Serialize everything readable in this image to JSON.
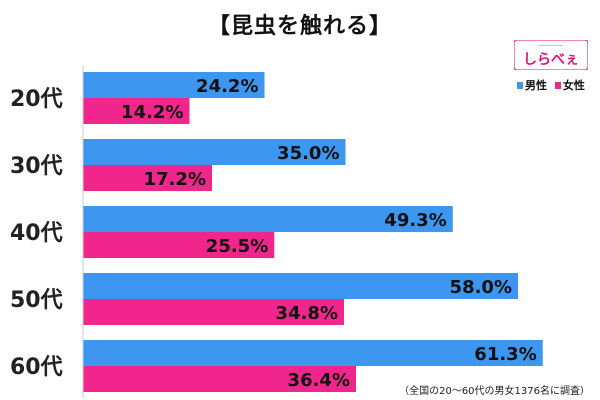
{
  "title": "【昆虫を触れる】",
  "brand": {
    "text": "しらべぇ",
    "color": "#e0117f"
  },
  "note": "（全国の20～60代の男女1376名に調査）",
  "colors": {
    "male": "#3d96f0",
    "female": "#f0268c"
  },
  "chart_data": {
    "type": "bar",
    "orientation": "horizontal",
    "title": "【昆虫を触れる】",
    "categories": [
      "20代",
      "30代",
      "40代",
      "50代",
      "60代"
    ],
    "series": [
      {
        "name": "男性",
        "values": [
          24.2,
          35.0,
          49.3,
          58.0,
          61.3
        ],
        "labels": [
          "24.2%",
          "35.0%",
          "49.3%",
          "58.0%",
          "61.3%"
        ]
      },
      {
        "name": "女性",
        "values": [
          14.2,
          17.2,
          25.5,
          34.8,
          36.4
        ],
        "labels": [
          "14.2%",
          "17.2%",
          "25.5%",
          "34.8%",
          "36.4%"
        ]
      }
    ],
    "xlim": [
      0,
      100
    ],
    "grid": false,
    "legend": "top-right"
  }
}
